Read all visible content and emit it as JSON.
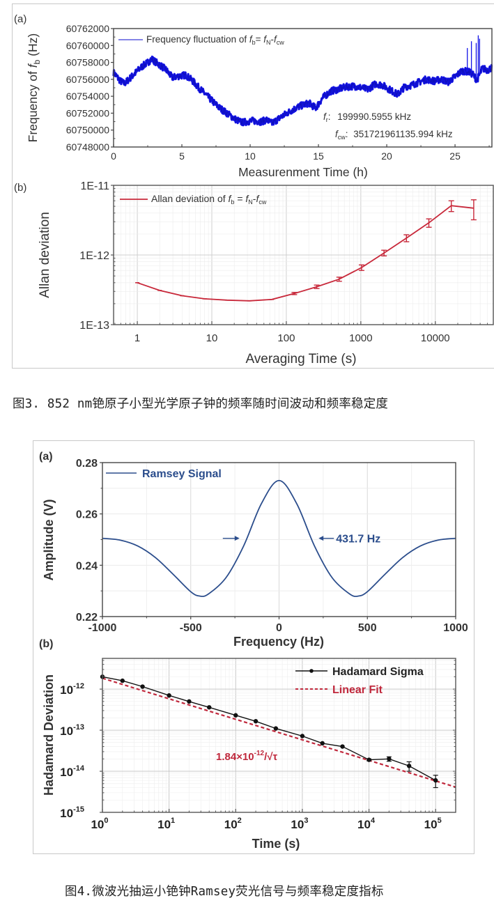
{
  "figure3": {
    "caption": "图3. 852 nm铯原子小型光学原子钟的频率随时间波动和频率稳定度",
    "panel_a_label": "(a)",
    "panel_b_label": "(b)"
  },
  "figure4": {
    "caption": "图4.微波光抽运小铯钟Ramsey荧光信号与频率稳定度指标",
    "panel_a_label": "(a)",
    "panel_b_label": "(b)"
  },
  "chart_data": [
    {
      "id": "fig3a",
      "type": "line",
      "title": "",
      "xlabel": "Measurenment Time (h)",
      "ylabel": "Frequency of f_b (Hz)",
      "ylabel_parts": {
        "pre": "Frequency of ",
        "f": "f",
        "sub": "b",
        "post": " (Hz)"
      },
      "xlim": [
        0,
        27.7
      ],
      "ylim": [
        60748000,
        60762000
      ],
      "xticks": [
        0,
        5,
        10,
        15,
        20,
        25
      ],
      "xtick_labels": [
        "0",
        "5",
        "10",
        "15",
        "20",
        "25"
      ],
      "yticks": [
        60748000,
        60750000,
        60752000,
        60754000,
        60756000,
        60758000,
        60760000,
        60762000
      ],
      "ytick_labels": [
        "60748000",
        "60750000",
        "60752000",
        "60754000",
        "60756000",
        "60758000",
        "60760000",
        "60762000"
      ],
      "legend": {
        "text": "Frequency fluctuation of f_b= f_N-f_cw",
        "placement": "top-left",
        "color": "#3a3ad8"
      },
      "annotations": [
        {
          "symbol": "f",
          "sub": "r",
          "text": "199990.5955 kHz"
        },
        {
          "symbol": "f",
          "sub": "cw",
          "text": "351721961135.994 kHz"
        }
      ],
      "color": "#1414e6",
      "series": [
        {
          "name": "Frequency fluctuation of f_b",
          "x": [
            0,
            0.5,
            0.8,
            1.5,
            2.0,
            2.5,
            2.8,
            3.2,
            3.8,
            4.3,
            4.8,
            5.3,
            5.8,
            6.3,
            7.0,
            7.7,
            8.3,
            8.9,
            9.4,
            9.8,
            10.2,
            10.8,
            11.2,
            11.6,
            12.3,
            13.0,
            13.6,
            14.3,
            14.8,
            15.3,
            15.9,
            16.4,
            17.0,
            17.6,
            18.2,
            18.6,
            19.2,
            19.7,
            20.3,
            20.8,
            21.3,
            21.8,
            22.4,
            22.9,
            23.5,
            24.0,
            24.5,
            25.0,
            25.5,
            26.0,
            26.3,
            26.6,
            27.0,
            27.4,
            27.7
          ],
          "y": [
            60756800,
            60755800,
            60755500,
            60756600,
            60757400,
            60758000,
            60758400,
            60757900,
            60757200,
            60756200,
            60756400,
            60756500,
            60755800,
            60754900,
            60753800,
            60752700,
            60752000,
            60751300,
            60750900,
            60751000,
            60751100,
            60751000,
            60751200,
            60750800,
            60751600,
            60752300,
            60752800,
            60753200,
            60752600,
            60753800,
            60754600,
            60754800,
            60755100,
            60755200,
            60755000,
            60754800,
            60755500,
            60755300,
            60754700,
            60754200,
            60755100,
            60755300,
            60755700,
            60756000,
            60755800,
            60756000,
            60755700,
            60756300,
            60757000,
            60756900,
            60756600,
            60755900,
            60757300,
            60757100,
            60757400
          ]
        }
      ],
      "spikes": [
        {
          "x": 25.9,
          "y": 60759700
        },
        {
          "x": 26.2,
          "y": 60760500
        },
        {
          "x": 26.55,
          "y": 60760300
        },
        {
          "x": 26.7,
          "y": 60761200
        },
        {
          "x": 26.8,
          "y": 60760800
        }
      ],
      "noise_band_hz": 500,
      "grid": false
    },
    {
      "id": "fig3b",
      "type": "line",
      "title": "",
      "xlabel": "Averaging Time (s)",
      "ylabel": "Allan deviation",
      "xscale": "log",
      "yscale": "log",
      "xlim": [
        0.48,
        60000
      ],
      "ylim": [
        1e-13,
        1e-11
      ],
      "xticks": [
        1,
        10,
        100,
        1000,
        10000
      ],
      "xtick_labels": [
        "1",
        "10",
        "100",
        "1000",
        "10000"
      ],
      "yticks": [
        1e-13,
        1e-12,
        1e-11
      ],
      "ytick_labels": [
        "1E-13",
        "1E-12",
        "1E-11"
      ],
      "legend": {
        "text": "Allan deviation of f_b = f_N-f_cw",
        "placement": "top-left"
      },
      "color": "#c8283a",
      "grid": true,
      "series": [
        {
          "name": "Allan deviation of f_b",
          "x": [
            1,
            2,
            4,
            8,
            16,
            32,
            64,
            128,
            256,
            512,
            1024,
            2048,
            4096,
            8192,
            16384,
            32768
          ],
          "y": [
            4e-13,
            3.1e-13,
            2.6e-13,
            2.35e-13,
            2.25e-13,
            2.2e-13,
            2.3e-13,
            2.8e-13,
            3.5e-13,
            4.5e-13,
            6.6e-13,
            1.07e-12,
            1.75e-12,
            2.9e-12,
            5.1e-12,
            4.7e-12
          ],
          "err": [
            0,
            0,
            0,
            0,
            0,
            0,
            0,
            1e-14,
            2e-14,
            3e-14,
            6e-14,
            1e-13,
            2e-13,
            4e-13,
            9e-13,
            1.5e-12
          ]
        }
      ]
    },
    {
      "id": "fig4a",
      "type": "line",
      "title": "",
      "xlabel": "Frequency (Hz)",
      "ylabel": "Amplitude (V)",
      "xlim": [
        -1000,
        1000
      ],
      "ylim": [
        0.22,
        0.28
      ],
      "xticks": [
        -1000,
        -500,
        0,
        500,
        1000
      ],
      "xtick_labels": [
        "-1000",
        "-500",
        "0",
        "500",
        "1000"
      ],
      "yticks": [
        0.22,
        0.24,
        0.26,
        0.28
      ],
      "ytick_labels": [
        "0.22",
        "0.24",
        "0.26",
        "0.28"
      ],
      "legend": {
        "text": "Ramsey Signal",
        "placement": "top-left"
      },
      "annotation": {
        "text": "431.7 Hz",
        "fwhm_hz": 431.7,
        "level_v": 0.2505
      },
      "color": "#2b4d8c",
      "grid": true,
      "series": [
        {
          "name": "Ramsey Signal",
          "x": [
            -1000,
            -900,
            -800,
            -700,
            -600,
            -500,
            -450,
            -400,
            -300,
            -200,
            -100,
            0,
            100,
            200,
            300,
            400,
            450,
            500,
            600,
            700,
            800,
            900,
            1000
          ],
          "y": [
            0.2505,
            0.2498,
            0.2475,
            0.243,
            0.2365,
            0.2297,
            0.228,
            0.2288,
            0.2352,
            0.2476,
            0.264,
            0.273,
            0.264,
            0.2476,
            0.2352,
            0.2288,
            0.228,
            0.2297,
            0.2365,
            0.243,
            0.2475,
            0.2498,
            0.2505
          ]
        }
      ]
    },
    {
      "id": "fig4b",
      "type": "line",
      "title": "",
      "xlabel": "Time (s)",
      "ylabel": "Hadamard Deviation",
      "xscale": "log",
      "yscale": "log",
      "xlim": [
        1,
        200000
      ],
      "ylim": [
        1e-15,
        5.6e-12
      ],
      "xticks": [
        1,
        10,
        100,
        1000,
        10000,
        100000
      ],
      "xtick_exponents": [
        "0",
        "1",
        "2",
        "3",
        "4",
        "5"
      ],
      "yticks": [
        1e-15,
        1e-14,
        1e-13,
        1e-12
      ],
      "ytick_exponents": [
        "-15",
        "-14",
        "-13",
        "-12"
      ],
      "legend": {
        "entries": [
          "Hadamard Sigma",
          "Linear Fit"
        ],
        "placement": "top-right"
      },
      "annotation": {
        "text_pre": "1.84×10",
        "text_sup": "-12",
        "text_post": "/√τ"
      },
      "colors": {
        "data": "#111111",
        "fit": "#c0283c"
      },
      "grid": true,
      "series": [
        {
          "name": "Hadamard Sigma",
          "x": [
            1,
            2,
            4,
            10,
            20,
            40,
            100,
            200,
            400,
            1000,
            2000,
            4000,
            10000,
            20000,
            40000,
            100000
          ],
          "y": [
            2e-12,
            1.6e-12,
            1.15e-12,
            7e-13,
            5e-13,
            3.6e-13,
            2.3e-13,
            1.65e-13,
            1.1e-13,
            7.2e-14,
            4.8e-14,
            4e-14,
            1.9e-14,
            2e-14,
            1.35e-14,
            6e-15
          ],
          "err": [
            0,
            0,
            0,
            0,
            0,
            0,
            0,
            0,
            0,
            0,
            0,
            0,
            1e-15,
            2.5e-15,
            3.5e-15,
            2e-15
          ]
        },
        {
          "name": "Linear Fit",
          "coefficient": 1.84e-12,
          "exponent": -0.5,
          "x": [
            1,
            200000
          ]
        }
      ]
    }
  ]
}
